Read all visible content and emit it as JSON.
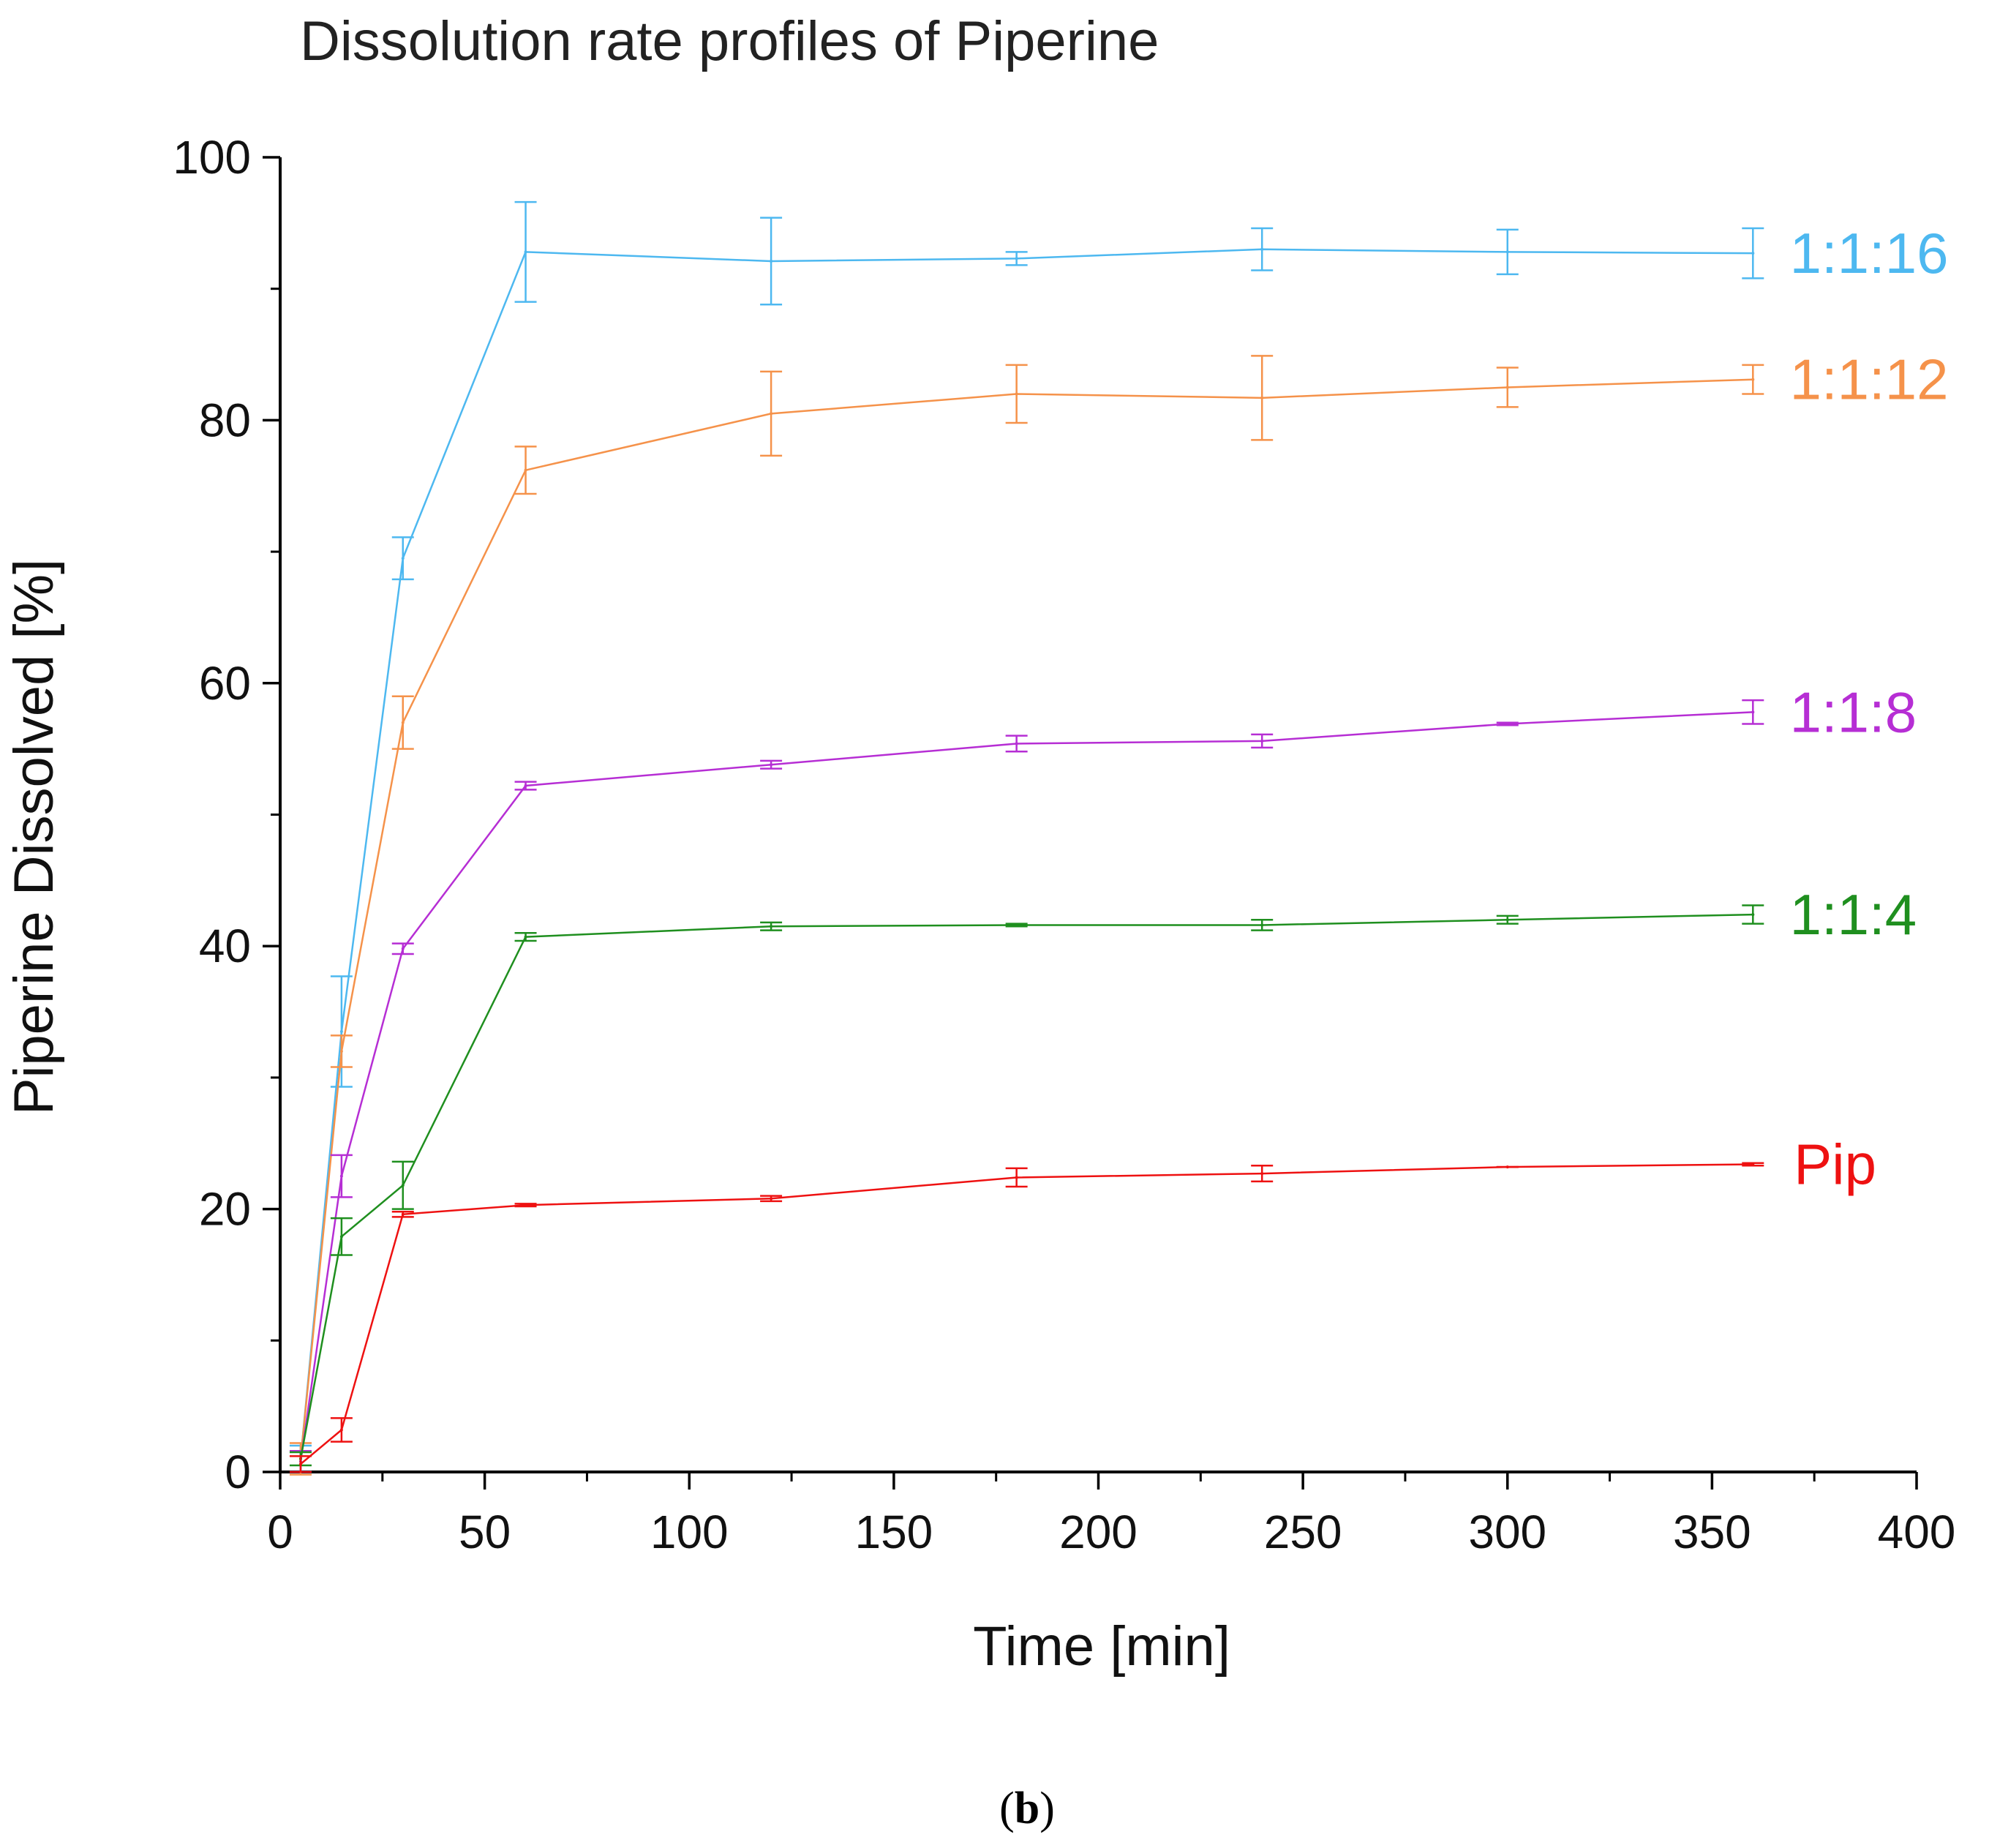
{
  "chart_data": {
    "type": "line",
    "title": "Dissolution rate profiles of Piperine",
    "xlabel": "Time [min]",
    "ylabel": "Piperine Dissolved [%]",
    "xlim": [
      0,
      400
    ],
    "ylim": [
      0,
      100
    ],
    "x_ticks": [
      0,
      50,
      100,
      150,
      200,
      250,
      300,
      350,
      400
    ],
    "y_ticks": [
      0,
      20,
      40,
      60,
      80,
      100
    ],
    "grid": false,
    "x": [
      5,
      15,
      30,
      60,
      120,
      180,
      240,
      300,
      360
    ],
    "series": [
      {
        "name": "1:1:16",
        "color": "#4db8f0",
        "values": [
          1.0,
          33.5,
          69.5,
          92.8,
          92.1,
          92.3,
          93.0,
          92.8,
          92.7
        ],
        "errors": [
          1.0,
          4.2,
          1.6,
          3.8,
          3.3,
          0.5,
          1.6,
          1.7,
          1.9
        ]
      },
      {
        "name": "1:1:12",
        "color": "#f5924a",
        "values": [
          1.0,
          32.0,
          57.0,
          76.2,
          80.5,
          82.0,
          81.7,
          82.5,
          83.1
        ],
        "errors": [
          1.2,
          1.2,
          2.0,
          1.8,
          3.2,
          2.2,
          3.2,
          1.5,
          1.1
        ]
      },
      {
        "name": "1:1:8",
        "color": "#b62ed4",
        "values": [
          0.8,
          22.5,
          39.8,
          52.2,
          53.8,
          55.4,
          55.6,
          56.9,
          57.8
        ],
        "errors": [
          0.8,
          1.6,
          0.4,
          0.3,
          0.3,
          0.6,
          0.5,
          0.1,
          0.9
        ]
      },
      {
        "name": "1:1:4",
        "color": "#1f8f1f",
        "values": [
          1.0,
          17.9,
          21.8,
          40.7,
          41.5,
          41.6,
          41.6,
          42.0,
          42.4
        ],
        "errors": [
          0.5,
          1.4,
          1.8,
          0.3,
          0.3,
          0.1,
          0.4,
          0.3,
          0.7
        ]
      },
      {
        "name": "Pip",
        "color": "#ee1111",
        "values": [
          0.6,
          3.2,
          19.6,
          20.3,
          20.8,
          22.4,
          22.7,
          23.2,
          23.4
        ],
        "errors": [
          0.6,
          0.9,
          0.2,
          0.1,
          0.2,
          0.7,
          0.6,
          0.0,
          0.1
        ]
      }
    ],
    "panel_label_open": "(",
    "panel_label": "b",
    "panel_label_close": ")"
  }
}
